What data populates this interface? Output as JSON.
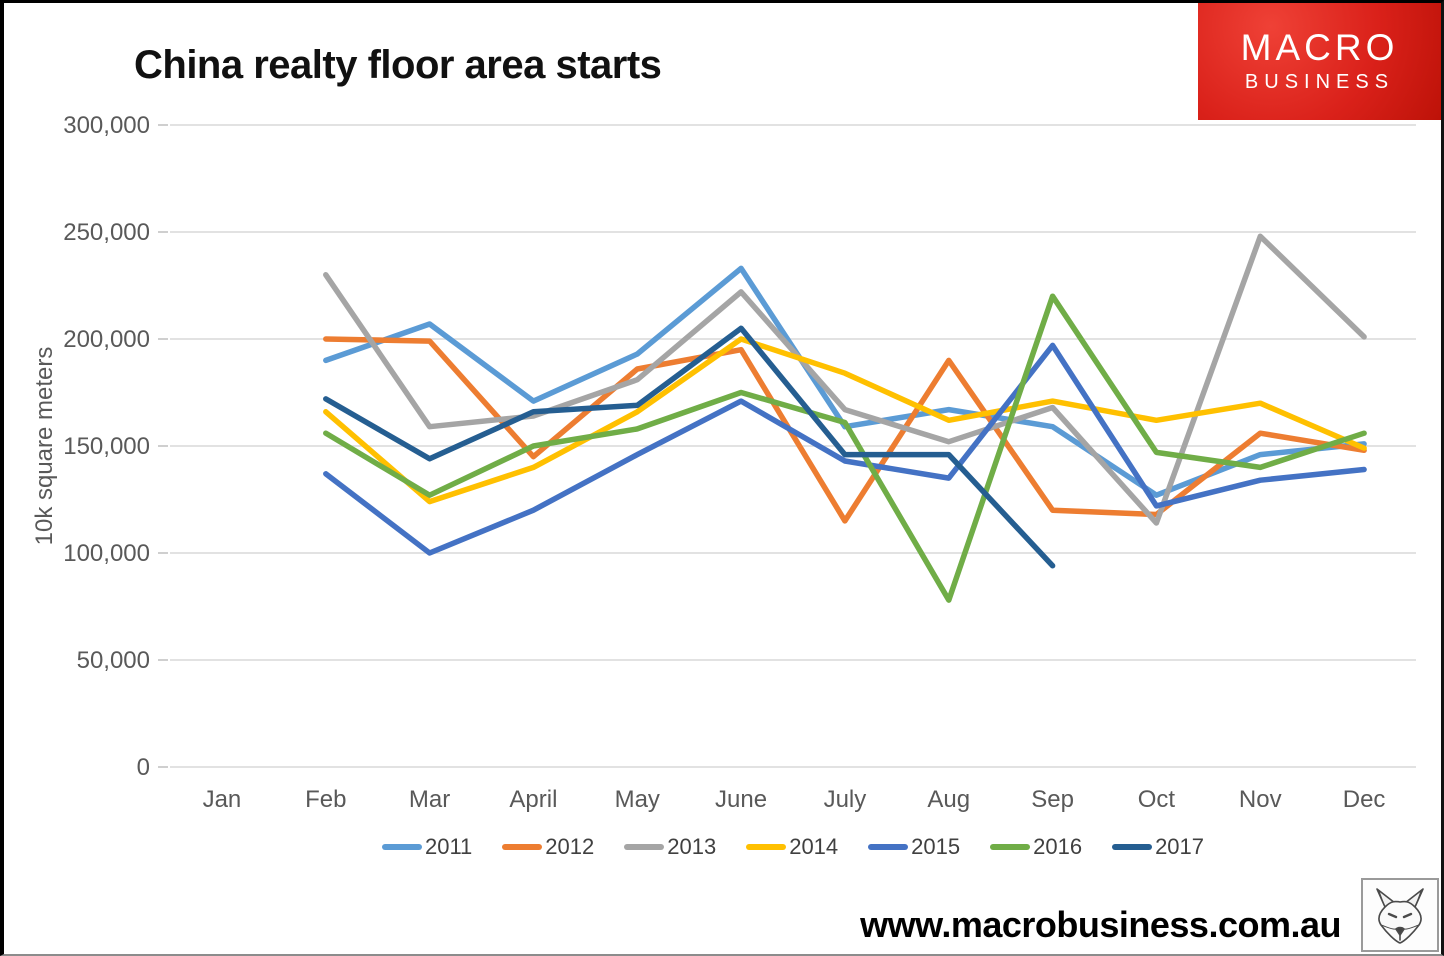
{
  "logo": {
    "line1": "MACRO",
    "line2": "BUSINESS",
    "background": "#d21e14"
  },
  "footer": {
    "url": "www.macrobusiness.com.au"
  },
  "chart_data": {
    "type": "line",
    "title": "China realty floor area starts",
    "xlabel": "",
    "ylabel": "10k square meters",
    "ylim": [
      0,
      300000
    ],
    "y_tick_step": 50000,
    "y_tick_labels": [
      "0",
      "50,000",
      "100,000",
      "150,000",
      "200,000",
      "250,000",
      "300,000"
    ],
    "grid": "horizontal",
    "gridline_color": "#D9D9D9",
    "axis_text_color": "#595959",
    "legend_position": "bottom",
    "categories": [
      "Jan",
      "Feb",
      "Mar",
      "April",
      "May",
      "June",
      "July",
      "Aug",
      "Sep",
      "Oct",
      "Nov",
      "Dec"
    ],
    "series": [
      {
        "name": "2011",
        "color": "#5B9BD5",
        "values": [
          null,
          190000,
          207000,
          171000,
          193000,
          233000,
          159000,
          167000,
          159000,
          127000,
          146000,
          151000
        ]
      },
      {
        "name": "2012",
        "color": "#ED7D31",
        "values": [
          null,
          200000,
          199000,
          145000,
          186000,
          195000,
          115000,
          190000,
          120000,
          118000,
          156000,
          148000
        ]
      },
      {
        "name": "2013",
        "color": "#A5A5A5",
        "values": [
          null,
          230000,
          159000,
          164000,
          181000,
          222000,
          167000,
          152000,
          168000,
          114000,
          248000,
          201000
        ]
      },
      {
        "name": "2014",
        "color": "#FFC000",
        "values": [
          null,
          166000,
          124000,
          140000,
          166000,
          200000,
          184000,
          162000,
          171000,
          162000,
          170000,
          149000
        ]
      },
      {
        "name": "2015",
        "color": "#4472C4",
        "values": [
          null,
          137000,
          100000,
          120000,
          146000,
          171000,
          143000,
          135000,
          197000,
          122000,
          134000,
          139000
        ]
      },
      {
        "name": "2016",
        "color": "#70AD47",
        "values": [
          null,
          156000,
          127000,
          150000,
          158000,
          175000,
          161000,
          78000,
          220000,
          147000,
          140000,
          156000
        ]
      },
      {
        "name": "2017",
        "color": "#255E91",
        "values": [
          null,
          172000,
          144000,
          166000,
          169000,
          205000,
          146000,
          146000,
          94000,
          null,
          null,
          null
        ]
      }
    ]
  }
}
